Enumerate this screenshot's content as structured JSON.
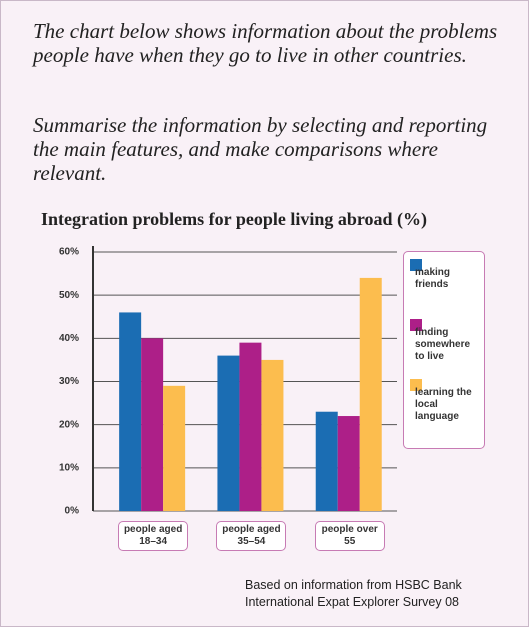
{
  "header": {
    "prompt": "The chart below shows information about the problems people have when they go to live in other countries.",
    "task": "Summarise the information by selecting and reporting the main features, and make comparisons where relevant."
  },
  "chart_data": {
    "type": "bar",
    "title": "Integration problems for people living abroad (%)",
    "categories": [
      "people aged 18–34",
      "people aged 35–54",
      "people over 55"
    ],
    "series": [
      {
        "name": "making friends",
        "color": "#1b6db3",
        "values": [
          46,
          36,
          23
        ]
      },
      {
        "name": "finding somewhere to live",
        "color": "#ad1f88",
        "values": [
          40,
          39,
          22
        ]
      },
      {
        "name": "learning the local language",
        "color": "#fcbd4e",
        "values": [
          29,
          35,
          54
        ]
      }
    ],
    "ylim": [
      0,
      60
    ],
    "yticks": [
      {
        "value": 0,
        "label": "0%"
      },
      {
        "value": 10,
        "label": "10%"
      },
      {
        "value": 20,
        "label": "20%"
      },
      {
        "value": 30,
        "label": "30%"
      },
      {
        "value": 40,
        "label": "40%"
      },
      {
        "value": 50,
        "label": "50%"
      },
      {
        "value": 60,
        "label": "60%"
      }
    ],
    "grid": true,
    "legend_position": "right",
    "source": "Based on information from HSBC Bank International Expat Explorer Survey 08"
  }
}
